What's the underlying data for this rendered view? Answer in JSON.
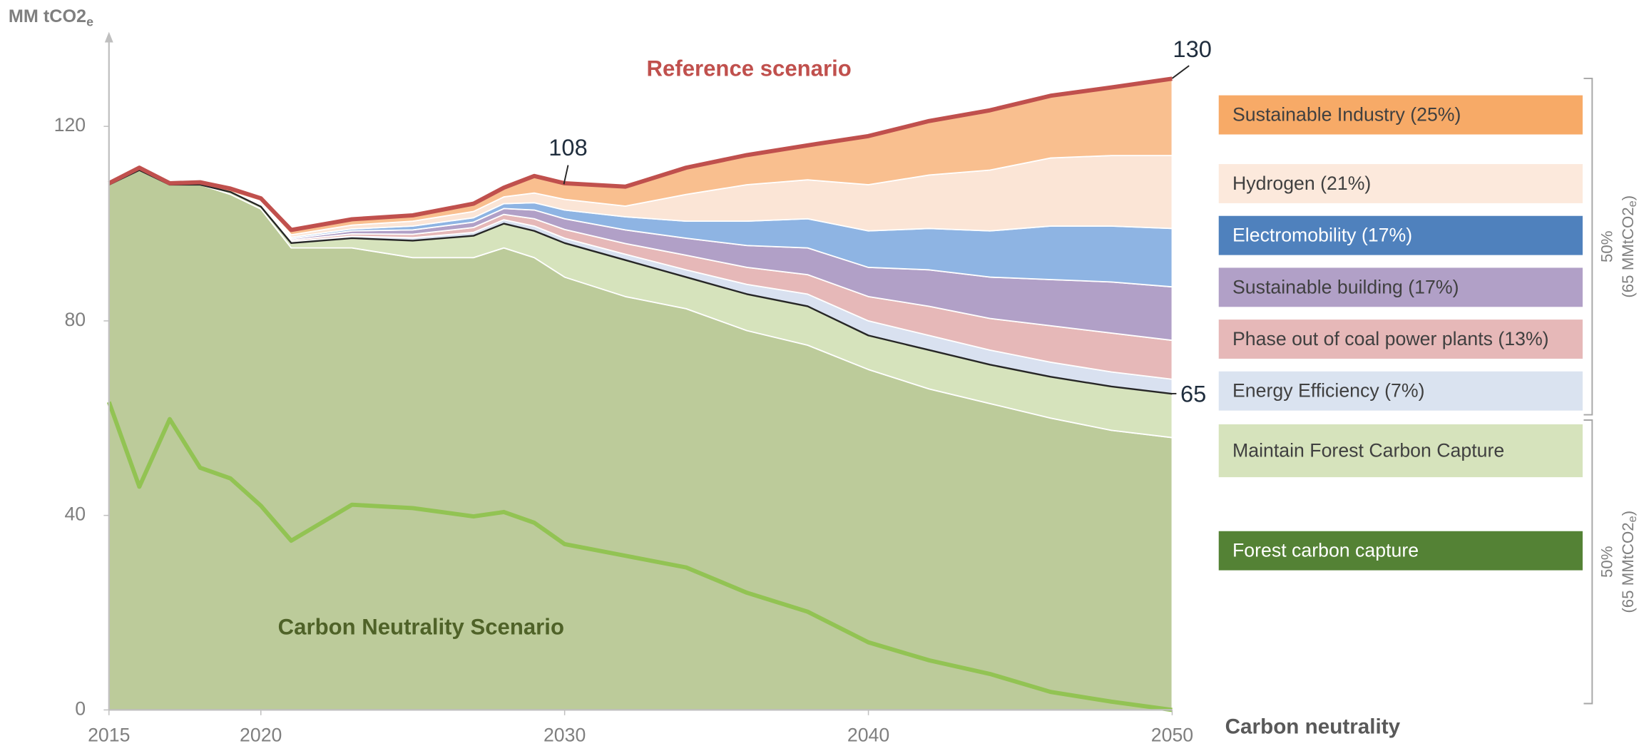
{
  "chart_data": {
    "type": "stacked_area",
    "y_label": "MM tCO2",
    "y_label_sub": "e",
    "reference_label": "Reference scenario",
    "x_end_label": "Carbon neutrality",
    "x": [
      2015,
      2016,
      2017,
      2018,
      2019,
      2020,
      2021,
      2023,
      2025,
      2027,
      2028,
      2029,
      2030,
      2032,
      2034,
      2036,
      2038,
      2040,
      2042,
      2044,
      2046,
      2048,
      2050
    ],
    "xlim": [
      2015,
      2050
    ],
    "xticks": [
      2015,
      2020,
      2030,
      2040,
      2050
    ],
    "ylim": [
      0,
      139
    ],
    "yticks": [
      0,
      40,
      80,
      120
    ],
    "series": [
      {
        "name": "Forest carbon capture",
        "color": "#bccb9a",
        "legend_color": "#548235",
        "values": [
          108,
          111,
          108,
          108,
          106,
          103,
          95,
          95,
          93,
          93,
          95,
          93,
          89,
          85,
          82.5,
          78,
          75,
          70,
          66,
          63,
          60,
          57.5,
          56
        ]
      },
      {
        "name": "Maintain Forest Carbon Capture",
        "color": "#d6e3bc",
        "legend_color": "#d6e3bc",
        "values": [
          0,
          0,
          0,
          0,
          0.5,
          0.5,
          1,
          2,
          3.5,
          4.5,
          5,
          5.5,
          7,
          7.5,
          6.5,
          7.5,
          8,
          7,
          8,
          8,
          8.5,
          9,
          9
        ]
      },
      {
        "name": "Energy Efficiency (7%)",
        "color": "#d9e1f0",
        "legend_color": "#dae3f0",
        "values": [
          0,
          0,
          0,
          0,
          0,
          0.2,
          0.3,
          0.4,
          0.6,
          0.7,
          0.8,
          1,
          1,
          1.2,
          1.5,
          2,
          2.5,
          3,
          3,
          3,
          3,
          3,
          3
        ]
      },
      {
        "name": "Phase out of coal power plants (13%)",
        "color": "#e6b8b8",
        "legend_color": "#e6b8b8",
        "values": [
          0,
          0,
          0,
          0,
          0,
          0.2,
          0.3,
          0.5,
          0.7,
          1,
          1.1,
          1.5,
          1.8,
          2.2,
          3,
          3.5,
          4,
          5,
          6,
          6.5,
          7.5,
          8,
          8
        ]
      },
      {
        "name": "Sustainable building  (17%)",
        "color": "#b1a0c7",
        "legend_color": "#b1a0c7",
        "values": [
          0,
          0,
          0,
          0,
          0,
          0.2,
          0.3,
          0.6,
          0.9,
          1.1,
          1.2,
          1.8,
          2.2,
          2.8,
          3.5,
          4.5,
          5.5,
          6,
          7.5,
          8.5,
          9.5,
          10.5,
          11
        ]
      },
      {
        "name": "Electromobility (17%)",
        "color": "#8eb4e3",
        "legend_color": "#4f81bd",
        "values": [
          0,
          0,
          0,
          0,
          0,
          0.2,
          0.3,
          0.4,
          0.8,
          0.9,
          1,
          1.5,
          1.8,
          2.7,
          3.5,
          5,
          6,
          7.5,
          8.5,
          9.5,
          11,
          11.5,
          12
        ]
      },
      {
        "name": "Hydrogen (21%)",
        "color": "#fbe5d6",
        "legend_color": "#fce9dc",
        "values": [
          0,
          0,
          0,
          0,
          0,
          0.3,
          0.5,
          0.8,
          1,
          1.3,
          1.4,
          2,
          2.2,
          2.2,
          5.5,
          7.5,
          8,
          9.5,
          11,
          12.5,
          14,
          14.5,
          15
        ]
      },
      {
        "name": "Sustainable Industry (25%)",
        "color": "#f9bf8f",
        "legend_color": "#f7aa67",
        "values": [
          0.3,
          0.5,
          0.3,
          0.5,
          0.7,
          0.6,
          1,
          1.2,
          1.2,
          1.6,
          1.9,
          3.5,
          3.3,
          4,
          5.5,
          6.1,
          7.1,
          10,
          11.1,
          12.3,
          12.8,
          14,
          15.8
        ]
      }
    ],
    "reference_color": "#c0504d",
    "total_color": "#262626",
    "lines": [
      {
        "name": "Carbon Neutrality Scenario",
        "color": "#92c353",
        "label_color": "#4f6228",
        "values": [
          63.3,
          45.9,
          59.8,
          49.8,
          47.6,
          42,
          34.8,
          42.2,
          41.5,
          39.8,
          40.7,
          38.5,
          34.1,
          31.7,
          29.3,
          24.1,
          20.2,
          13.9,
          10.2,
          7.4,
          3.7,
          1.7,
          0
        ]
      }
    ],
    "annotations": [
      {
        "text": "130",
        "x": 2050
      },
      {
        "text": "108",
        "x": 2030
      },
      {
        "text": "65",
        "x": 2050
      }
    ],
    "brackets": [
      {
        "label": "50%",
        "sub_label": "(65 MMtCO2",
        "subscript": "e",
        "close": ")"
      },
      {
        "label": "50%",
        "sub_label": "(65 MMtCO2",
        "subscript": "e",
        "close": ")"
      }
    ]
  }
}
